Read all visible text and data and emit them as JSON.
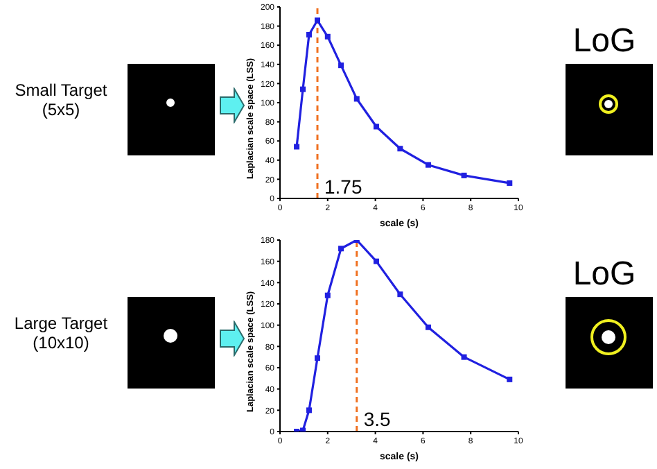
{
  "chart_data": [
    {
      "type": "line",
      "xlabel": "scale (s)",
      "ylabel": "Laplacian scale space (LSS)",
      "annotations": [
        "Small Target (5x5)",
        "LoG",
        {
          "text": "1.75",
          "x": 1.57,
          "y": 12
        }
      ],
      "x": [
        0.7,
        0.96,
        1.22,
        1.57,
        2.0,
        2.56,
        3.22,
        4.04,
        5.04,
        6.22,
        7.72,
        9.63
      ],
      "values": [
        54,
        114,
        171,
        186,
        169,
        139,
        104,
        75,
        52,
        35,
        24,
        16
      ],
      "color": "#2020e0",
      "xlim": [
        0,
        10
      ],
      "xticks": [
        0,
        2,
        4,
        6,
        8,
        10
      ],
      "ylim": [
        0,
        200
      ],
      "yticks": [
        0,
        20,
        40,
        60,
        80,
        100,
        120,
        140,
        160,
        180,
        200
      ],
      "ref_lines": [
        {
          "axis": "x",
          "value": 1.57,
          "color": "#f07020",
          "line_style": "dashed"
        }
      ],
      "grid": false,
      "marker": "square",
      "line_style": "solid"
    },
    {
      "type": "line",
      "xlabel": "scale (s)",
      "ylabel": "Laplacian scale space (LSS)",
      "annotations": [
        "Large Target (10x10)",
        "LoG",
        {
          "text": "3.5",
          "x": 3.22,
          "y": 12
        }
      ],
      "x": [
        0.7,
        0.96,
        1.22,
        1.57,
        2.0,
        2.56,
        3.22,
        4.04,
        5.04,
        6.22,
        7.72,
        9.63
      ],
      "values": [
        0,
        1,
        20,
        69,
        128,
        172,
        180,
        160,
        129,
        98,
        70,
        49
      ],
      "color": "#2020e0",
      "xlim": [
        0,
        10
      ],
      "xticks": [
        0,
        2,
        4,
        6,
        8,
        10
      ],
      "ylim": [
        0,
        180
      ],
      "yticks": [
        0,
        20,
        40,
        60,
        80,
        100,
        120,
        140,
        160,
        180
      ],
      "ref_lines": [
        {
          "axis": "x",
          "value": 3.22,
          "color": "#f07020",
          "line_style": "dashed"
        }
      ],
      "grid": false,
      "marker": "square",
      "line_style": "solid"
    }
  ]
}
